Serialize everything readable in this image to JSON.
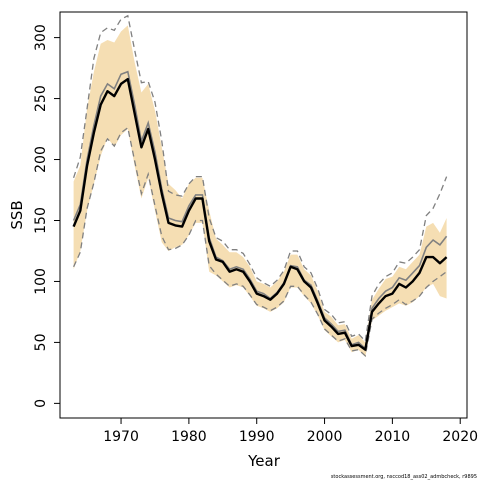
{
  "chart_data": {
    "type": "line",
    "xlabel": "Year",
    "ylabel": "SSB",
    "xlim": [
      1961,
      2021
    ],
    "ylim": [
      -12,
      321
    ],
    "x_ticks": [
      1970,
      1980,
      1990,
      2000,
      2010,
      2020
    ],
    "y_ticks": [
      0,
      50,
      100,
      150,
      200,
      250,
      300
    ],
    "footer": "stockassessment.org, nsccod18_ass02_admbcheck, r9895",
    "colors": {
      "band_fill": "#f5deb3",
      "estimate": "#000000",
      "comparison": "#808080"
    },
    "series": [
      {
        "x": [
          1963,
          1964,
          1965,
          1966,
          1967,
          1968,
          1969,
          1970,
          1971,
          1972,
          1973,
          1974,
          1975,
          1976,
          1977,
          1978,
          1979,
          1980,
          1981,
          1982,
          1983,
          1984,
          1985,
          1986,
          1987,
          1988,
          1989,
          1990,
          1991,
          1992,
          1993,
          1994,
          1995,
          1996,
          1997,
          1998,
          1999,
          2000,
          2001,
          2002,
          2003,
          2004,
          2005,
          2006,
          2007,
          2008,
          2009,
          2010,
          2011,
          2012,
          2013,
          2014,
          2015,
          2016,
          2017,
          2018
        ],
        "estimate": [
          145,
          158,
          195,
          222,
          245,
          256,
          252,
          262,
          266,
          238,
          210,
          225,
          200,
          172,
          148,
          146,
          145,
          158,
          168,
          168,
          133,
          118,
          116,
          108,
          110,
          108,
          100,
          90,
          88,
          85,
          90,
          98,
          112,
          110,
          100,
          95,
          82,
          68,
          63,
          57,
          58,
          47,
          48,
          44,
          75,
          82,
          88,
          90,
          98,
          95,
          100,
          107,
          120,
          120,
          115,
          120
        ],
        "lower": [
          110,
          125,
          158,
          180,
          203,
          218,
          210,
          220,
          225,
          195,
          168,
          185,
          158,
          132,
          125,
          128,
          130,
          138,
          148,
          148,
          108,
          105,
          100,
          95,
          97,
          95,
          88,
          80,
          78,
          75,
          78,
          83,
          95,
          95,
          88,
          82,
          72,
          60,
          55,
          50,
          52,
          42,
          44,
          38,
          68,
          72,
          76,
          79,
          82,
          80,
          83,
          88,
          95,
          98,
          88,
          86
        ],
        "upper": [
          182,
          195,
          242,
          272,
          295,
          298,
          296,
          305,
          310,
          280,
          255,
          262,
          240,
          210,
          180,
          175,
          168,
          180,
          185,
          185,
          158,
          135,
          130,
          124,
          124,
          120,
          112,
          100,
          98,
          95,
          100,
          108,
          122,
          122,
          110,
          105,
          92,
          75,
          71,
          64,
          65,
          53,
          56,
          50,
          85,
          94,
          102,
          104,
          112,
          110,
          116,
          122,
          145,
          148,
          140,
          152
        ],
        "comparison": [
          150,
          163,
          200,
          228,
          252,
          262,
          258,
          270,
          272,
          245,
          215,
          230,
          206,
          176,
          152,
          150,
          149,
          162,
          171,
          171,
          136,
          120,
          117,
          110,
          112,
          110,
          102,
          92,
          90,
          86,
          91,
          99,
          113,
          112,
          101,
          97,
          84,
          70,
          65,
          59,
          60,
          48,
          50,
          45,
          78,
          86,
          92,
          95,
          103,
          101,
          107,
          113,
          128,
          134,
          130,
          137
        ],
        "comparison_lower": [
          112,
          124,
          160,
          181,
          207,
          217,
          211,
          222,
          226,
          199,
          172,
          188,
          162,
          137,
          126,
          127,
          130,
          138,
          150,
          150,
          113,
          106,
          101,
          96,
          98,
          96,
          89,
          81,
          79,
          76,
          79,
          84,
          96,
          96,
          89,
          83,
          73,
          61,
          56,
          51,
          53,
          43,
          44,
          39,
          69,
          74,
          78,
          81,
          85,
          81,
          84,
          88,
          95,
          100,
          104,
          108
        ],
        "comparison_upper": [
          185,
          202,
          242,
          283,
          304,
          308,
          306,
          315,
          318,
          290,
          263,
          264,
          247,
          215,
          174,
          171,
          170,
          180,
          186,
          186,
          152,
          136,
          133,
          126,
          126,
          123,
          114,
          103,
          99,
          96,
          101,
          109,
          125,
          125,
          112,
          107,
          94,
          77,
          73,
          66,
          67,
          55,
          57,
          51,
          88,
          98,
          104,
          107,
          116,
          115,
          120,
          126,
          154,
          160,
          172,
          186
        ]
      }
    ]
  }
}
